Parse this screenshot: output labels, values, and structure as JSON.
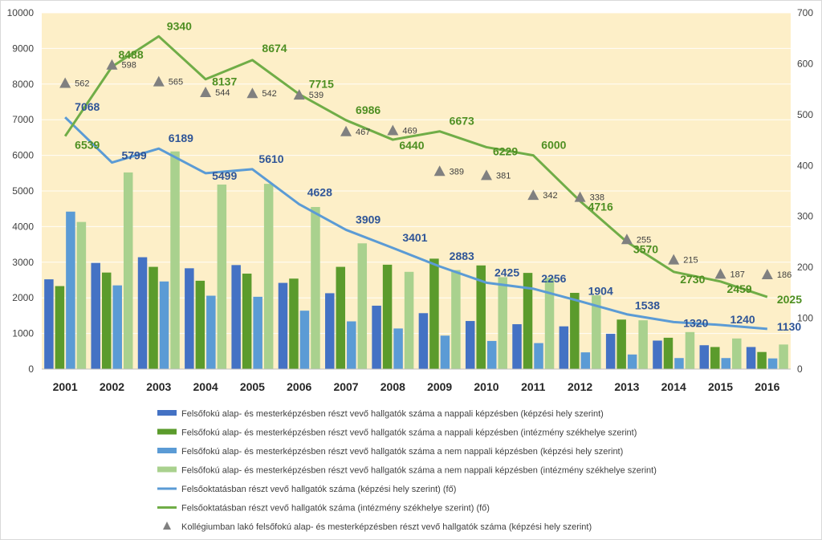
{
  "colors": {
    "plot_bg": "#fdefc8",
    "s1": "#4472c4",
    "s2": "#5b9b2c",
    "s3": "#5b9bd5",
    "s4": "#a9d18e",
    "line_blue": "#5b9bd5",
    "line_green": "#70ad47",
    "triangle": "#808080",
    "label_blue": "#2f5597",
    "label_green": "#4e8f22"
  },
  "chart_data": {
    "type": "bar",
    "categories": [
      "2001",
      "2002",
      "2003",
      "2004",
      "2005",
      "2006",
      "2007",
      "2008",
      "2009",
      "2010",
      "2011",
      "2012",
      "2013",
      "2014",
      "2015",
      "2016"
    ],
    "left_axis": {
      "min": 0,
      "max": 10000,
      "step": 1000,
      "ticks": [
        "0",
        "1000",
        "2000",
        "3000",
        "4000",
        "5000",
        "6000",
        "7000",
        "8000",
        "9000",
        "10000"
      ]
    },
    "right_axis": {
      "min": 0,
      "max": 700,
      "step": 100,
      "ticks": [
        "0",
        "100",
        "200",
        "300",
        "400",
        "500",
        "600",
        "700"
      ]
    },
    "bar_series": [
      {
        "name": "Felsőfokú alap- és mesterképzésben részt vevő hallgatók száma a nappali képzésben (képzési hely szerint)",
        "color": "#4472c4",
        "values": [
          2520,
          2980,
          3140,
          2830,
          2920,
          2420,
          2130,
          1780,
          1570,
          1350,
          1260,
          1200,
          990,
          800,
          670,
          620
        ]
      },
      {
        "name": "Felsőfokú alap- és mesterképzésben részt vevő hallgatók száma a nappali képzésben (intézmény székhelye szerint)",
        "color": "#5b9b2c",
        "values": [
          2330,
          2710,
          2870,
          2480,
          2680,
          2540,
          2870,
          2930,
          3100,
          2910,
          2700,
          2140,
          1390,
          880,
          620,
          480
        ]
      },
      {
        "name": "Felsőfokú alap- és mesterképzésben részt vevő hallgatók száma a nem nappali képzésben (képzési hely szerint)",
        "color": "#5b9bd5",
        "values": [
          4420,
          2350,
          2460,
          2060,
          2030,
          1640,
          1340,
          1140,
          940,
          790,
          730,
          470,
          410,
          310,
          310,
          300
        ]
      },
      {
        "name": "Felsőfokú alap- és mesterképzésben részt vevő hallgatók száma a nem nappali képzésben (intézmény székhelye szerint)",
        "color": "#a9d18e",
        "values": [
          4130,
          5520,
          6110,
          5180,
          5200,
          4550,
          3530,
          2730,
          2780,
          2580,
          2560,
          2070,
          1370,
          1040,
          860,
          690
        ]
      }
    ],
    "line_series": [
      {
        "name": "Felsőoktatásban  részt vevő hallgatók száma (képzési hely szerint) (fő)",
        "color": "#5b9bd5",
        "values": [
          7068,
          5799,
          6189,
          5499,
          5610,
          4628,
          3909,
          3401,
          2883,
          2425,
          2256,
          1904,
          1538,
          1320,
          1240,
          1130
        ],
        "labels": [
          "7068",
          "5799",
          "6189",
          "5499",
          "5610",
          "4628",
          "3909",
          "3401",
          "2883",
          "2425",
          "2256",
          "1904",
          "1538",
          "1320",
          "1240",
          "1130"
        ]
      },
      {
        "name": "Felsőoktatásban  részt vevő hallgatók száma (intézmény székhelye szerint) (fő)",
        "color": "#70ad47",
        "values": [
          6539,
          8488,
          9340,
          8137,
          8674,
          7715,
          6986,
          6440,
          6673,
          6229,
          6000,
          4716,
          3570,
          2730,
          2459,
          2025
        ],
        "labels": [
          "6539",
          "8488",
          "9340",
          "8137",
          "8674",
          "7715",
          "6986",
          "6440",
          "6673",
          "6229",
          "6000",
          "4716",
          "3570",
          "2730",
          "2459",
          "2025"
        ]
      }
    ],
    "marker_series": {
      "name": "Kollégiumban lakó felsőfokú alap- és mesterképzésben részt vevő hallgatók száma (képzési hely szerint)",
      "axis": "right",
      "color": "#808080",
      "values": [
        562,
        598,
        565,
        544,
        542,
        539,
        467,
        469,
        389,
        381,
        342,
        338,
        255,
        215,
        187,
        186
      ],
      "labels": [
        "562",
        "598",
        "565",
        "544",
        "542",
        "539",
        "467",
        "469",
        "389",
        "381",
        "342",
        "338",
        "255",
        "215",
        "187",
        "186"
      ]
    },
    "legend": [
      "Felsőfokú alap- és mesterképzésben részt vevő hallgatók száma a nappali képzésben (képzési hely szerint)",
      "Felsőfokú alap- és mesterképzésben részt vevő hallgatók száma a nappali képzésben (intézmény székhelye szerint)",
      "Felsőfokú alap- és mesterképzésben részt vevő hallgatók száma a nem nappali képzésben (képzési hely szerint)",
      "Felsőfokú alap- és mesterképzésben részt vevő hallgatók száma a nem nappali képzésben (intézmény székhelye szerint)",
      "Felsőoktatásban  részt vevő hallgatók száma (képzési hely szerint) (fő)",
      "Felsőoktatásban  részt vevő hallgatók száma (intézmény székhelye szerint) (fő)",
      "Kollégiumban lakó felsőfokú alap- és mesterképzésben részt vevő hallgatók száma (képzési hely szerint)"
    ],
    "legend_position": "bottom"
  }
}
